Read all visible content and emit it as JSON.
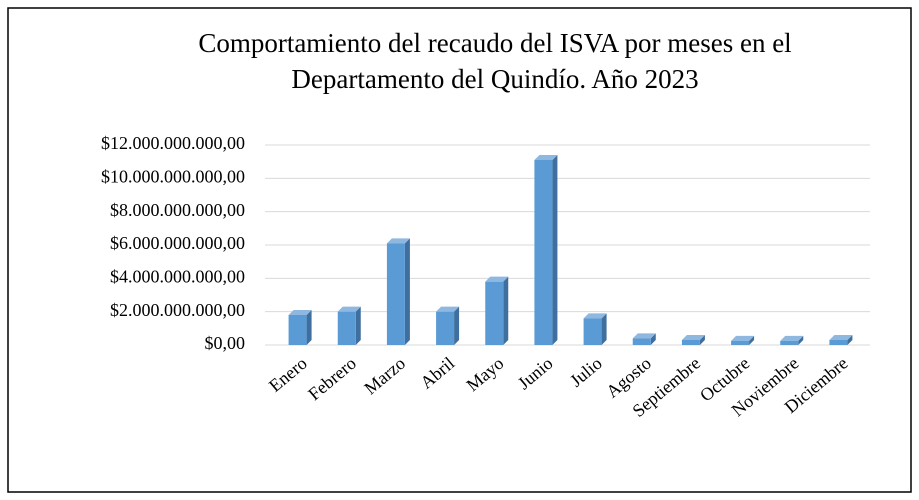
{
  "chart_data": {
    "type": "bar3d",
    "title": [
      "Comportamiento del recaudo del ISVA por meses en el",
      "Departamento del Quindío. Año 2023"
    ],
    "categories": [
      "Enero",
      "Febrero",
      "Marzo",
      "Abril",
      "Mayo",
      "Junio",
      "Julio",
      "Agosto",
      "Septiembre",
      "Octubre",
      "Noviembre",
      "Diciembre"
    ],
    "values": [
      1800000000,
      2000000000,
      6100000000,
      2000000000,
      3800000000,
      11100000000,
      1600000000,
      400000000,
      300000000,
      250000000,
      250000000,
      300000000
    ],
    "color": "#5b9bd5",
    "ylim": [
      0,
      12000000000
    ],
    "yticks": [
      {
        "value": 0,
        "label": "$0,00"
      },
      {
        "value": 2000000000,
        "label": "$2.000.000.000,00"
      },
      {
        "value": 4000000000,
        "label": "$4.000.000.000,00"
      },
      {
        "value": 6000000000,
        "label": "$6.000.000.000,00"
      },
      {
        "value": 8000000000,
        "label": "$8.000.000.000,00"
      },
      {
        "value": 10000000000,
        "label": "$10.000.000.000,00"
      },
      {
        "value": 12000000000,
        "label": "$12.000.000.000,00"
      }
    ],
    "grid": true
  }
}
